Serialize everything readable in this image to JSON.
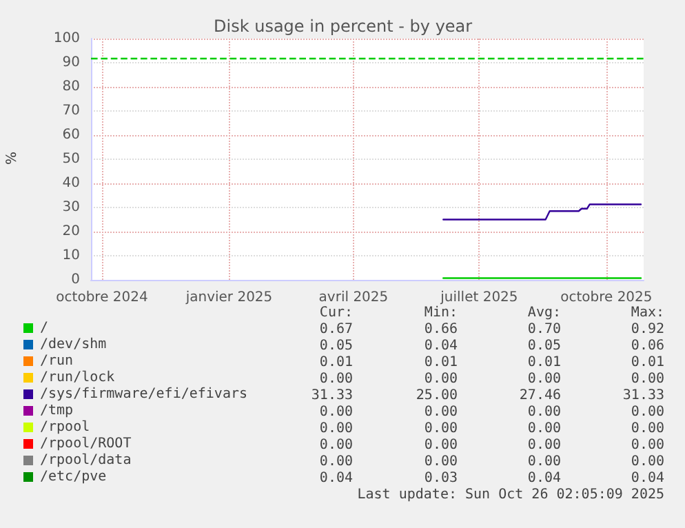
{
  "chart_data": {
    "type": "line",
    "title": "Disk usage in percent - by year",
    "ylabel": "%",
    "xlim": [
      "2024-09-23",
      "2025-10-28"
    ],
    "ylim": [
      0,
      100
    ],
    "yticks": [
      0,
      10,
      20,
      30,
      40,
      50,
      60,
      70,
      80,
      90,
      100
    ],
    "xticks": [
      {
        "value": "2024-10-01",
        "label": "octobre 2024"
      },
      {
        "value": "2025-01-01",
        "label": "janvier 2025"
      },
      {
        "value": "2025-04-01",
        "label": "avril 2025"
      },
      {
        "value": "2025-07-01",
        "label": "juillet 2025"
      },
      {
        "value": "2025-10-01",
        "label": "octobre 2025"
      }
    ],
    "grid": true,
    "legend": "bottom",
    "marker": "none",
    "line_style": "solid",
    "series": [
      {
        "name": "/",
        "color": "#00cc00",
        "x": [
          "2025-06-05",
          "2025-10-26"
        ],
        "values": [
          0.7,
          0.7
        ]
      },
      {
        "name": "/dev/shm",
        "color": "#0066b3",
        "values": [
          null
        ]
      },
      {
        "name": "/run",
        "color": "#ff8000",
        "values": [
          null
        ]
      },
      {
        "name": "/run/lock",
        "color": "#ffcc00",
        "values": [
          null
        ]
      },
      {
        "name": "/sys/firmware/efi/efivars",
        "color": "#330099",
        "x": [
          "2025-06-05",
          "2025-08-18",
          "2025-08-21",
          "2025-09-11",
          "2025-09-13",
          "2025-09-17",
          "2025-09-19",
          "2025-10-26"
        ],
        "values": [
          25,
          25,
          28.5,
          28.5,
          29.5,
          29.5,
          31.3,
          31.3
        ]
      },
      {
        "name": "/tmp",
        "color": "#990099",
        "values": [
          null
        ]
      },
      {
        "name": "/rpool",
        "color": "#ccff00",
        "values": [
          null
        ]
      },
      {
        "name": "/rpool/ROOT",
        "color": "#ff0000",
        "values": [
          null
        ]
      },
      {
        "name": "/rpool/data",
        "color": "#808080",
        "values": [
          null
        ]
      },
      {
        "name": "/etc/pve",
        "color": "#008f00",
        "values": [
          null
        ]
      }
    ],
    "ref_lines": [
      {
        "axis": "y",
        "value": 92,
        "color": "#00cc00",
        "line_style": "dashed"
      }
    ],
    "annotations": [
      "Cur:",
      "Min:",
      "Avg:",
      "Max:",
      "0.67",
      "0.66",
      "0.70",
      "0.92",
      "0.05",
      "0.04",
      "0.05",
      "0.06",
      "0.01",
      "0.01",
      "0.01",
      "0.01",
      "0.00",
      "0.00",
      "0.00",
      "0.00",
      "31.33",
      "25.00",
      "27.46",
      "31.33",
      "0.00",
      "0.00",
      "0.00",
      "0.00",
      "0.00",
      "0.00",
      "0.00",
      "0.00",
      "0.00",
      "0.00",
      "0.00",
      "0.00",
      "0.00",
      "0.00",
      "0.00",
      "0.00",
      "0.04",
      "0.03",
      "0.04",
      "0.04",
      "Last update: Sun Oct 26 02:05:09 2025"
    ]
  }
}
